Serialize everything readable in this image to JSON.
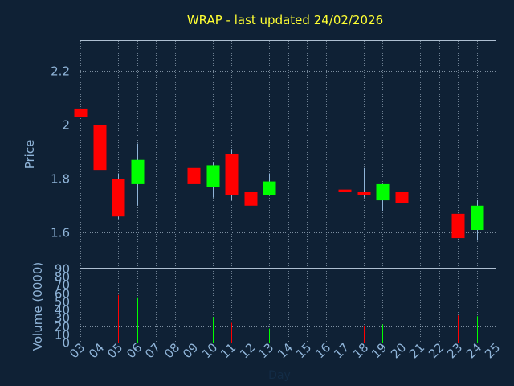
{
  "colors": {
    "background": "#0f2135",
    "title": "#ffff33",
    "axis_text": "#8fb4d8",
    "frame": "#aebfd1",
    "grid": "#aebfd1",
    "up": "#00ff00",
    "down": "#ff0000",
    "wick": "#8fb4d8"
  },
  "chart_data": {
    "type": "candlestick",
    "title": "WRAP - last updated 24/02/2026",
    "xlabel": "Day",
    "price_ylabel": "Price",
    "volume_ylabel": "Volume (0000)",
    "price_ylim": [
      1.47,
      2.31
    ],
    "price_yticks": [
      1.6,
      1.8,
      2,
      2.2
    ],
    "price_ytick_labels": [
      "1.6",
      "1.8",
      "2",
      "2.2"
    ],
    "volume_ylim": [
      0,
      90
    ],
    "volume_yticks": [
      0,
      10,
      20,
      30,
      40,
      50,
      60,
      70,
      80,
      90
    ],
    "volume_ytick_labels": [
      "0",
      "10",
      "20",
      "30",
      "40",
      "50",
      "60",
      "70",
      "80",
      "90"
    ],
    "x_labels": [
      "03",
      "04",
      "05",
      "06",
      "07",
      "08",
      "09",
      "10",
      "11",
      "12",
      "13",
      "14",
      "15",
      "16",
      "17",
      "18",
      "19",
      "20",
      "21",
      "22",
      "23",
      "24",
      "25"
    ],
    "grid": true,
    "candles": [
      {
        "day": "03",
        "open": 2.06,
        "high": 2.06,
        "low": 2.03,
        "close": 2.03,
        "volume": 0
      },
      {
        "day": "04",
        "open": 2.0,
        "high": 2.07,
        "low": 1.76,
        "close": 1.83,
        "volume": 90
      },
      {
        "day": "05",
        "open": 1.8,
        "high": 1.82,
        "low": 1.65,
        "close": 1.66,
        "volume": 58
      },
      {
        "day": "06",
        "open": 1.78,
        "high": 1.93,
        "low": 1.7,
        "close": 1.87,
        "volume": 55
      },
      {
        "day": "09",
        "open": 1.84,
        "high": 1.88,
        "low": 1.77,
        "close": 1.78,
        "volume": 49
      },
      {
        "day": "10",
        "open": 1.77,
        "high": 1.86,
        "low": 1.73,
        "close": 1.85,
        "volume": 31
      },
      {
        "day": "11",
        "open": 1.89,
        "high": 1.91,
        "low": 1.72,
        "close": 1.74,
        "volume": 24
      },
      {
        "day": "12",
        "open": 1.75,
        "high": 1.84,
        "low": 1.64,
        "close": 1.7,
        "volume": 27
      },
      {
        "day": "13",
        "open": 1.74,
        "high": 1.82,
        "low": 1.74,
        "close": 1.79,
        "volume": 17
      },
      {
        "day": "17",
        "open": 1.76,
        "high": 1.81,
        "low": 1.71,
        "close": 1.75,
        "volume": 24
      },
      {
        "day": "18",
        "open": 1.75,
        "high": 1.84,
        "low": 1.73,
        "close": 1.74,
        "volume": 20
      },
      {
        "day": "19",
        "open": 1.72,
        "high": 1.78,
        "low": 1.68,
        "close": 1.78,
        "volume": 22
      },
      {
        "day": "20",
        "open": 1.75,
        "high": 1.78,
        "low": 1.71,
        "close": 1.71,
        "volume": 17
      },
      {
        "day": "23",
        "open": 1.67,
        "high": 1.67,
        "low": 1.58,
        "close": 1.58,
        "volume": 33
      },
      {
        "day": "24",
        "open": 1.61,
        "high": 1.72,
        "low": 1.57,
        "close": 1.7,
        "volume": 32
      }
    ]
  }
}
